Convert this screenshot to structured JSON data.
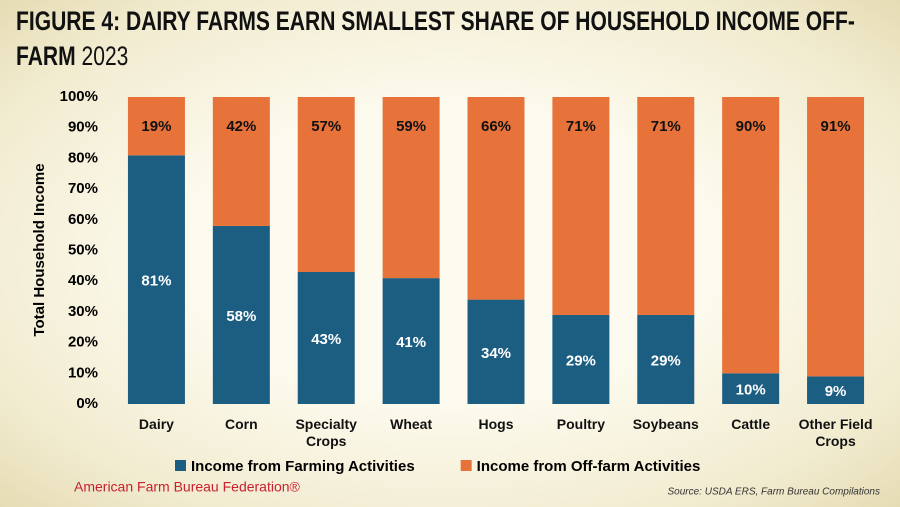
{
  "chart_data": {
    "type": "stacked_bar",
    "title": "FIGURE 4: DAIRY FARMS EARN SMALLEST SHARE OF HOUSEHOLD INCOME OFF-FARM",
    "subtitle": "2023",
    "y_label": "Total Household Income",
    "categories": [
      "Dairy",
      "Corn",
      "Specialty Crops",
      "Wheat",
      "Hogs",
      "Poultry",
      "Soybeans",
      "Cattle",
      "Other Field Crops"
    ],
    "series": [
      {
        "name": "Income from Farming Activities",
        "color": "#1c5d82",
        "values": [
          81,
          58,
          43,
          41,
          34,
          29,
          29,
          10,
          9
        ],
        "value_labels": [
          "81%",
          "58%",
          "43%",
          "41%",
          "34%",
          "29%",
          "29%",
          "10%",
          "9%"
        ]
      },
      {
        "name": "Income from Off-farm Activities",
        "color": "#e8733a",
        "values": [
          19,
          42,
          57,
          59,
          66,
          71,
          71,
          90,
          91
        ],
        "value_labels": [
          "19%",
          "42%",
          "57%",
          "59%",
          "66%",
          "71%",
          "71%",
          "90%",
          "91%"
        ]
      }
    ],
    "ylim": [
      0,
      100
    ],
    "yticks": [
      {
        "value": 0,
        "label": "0%"
      },
      {
        "value": 10,
        "label": "10%"
      },
      {
        "value": 20,
        "label": "20%"
      },
      {
        "value": 30,
        "label": "30%"
      },
      {
        "value": 40,
        "label": "40%"
      },
      {
        "value": 50,
        "label": "50%"
      },
      {
        "value": 60,
        "label": "60%"
      },
      {
        "value": 70,
        "label": "70%"
      },
      {
        "value": 80,
        "label": "80%"
      },
      {
        "value": 90,
        "label": "90%"
      },
      {
        "value": 100,
        "label": "100%"
      }
    ],
    "legend": "bottom",
    "organization": "American Farm Bureau Federation®",
    "source": "Source: USDA ERS, Farm Bureau Compilations"
  }
}
